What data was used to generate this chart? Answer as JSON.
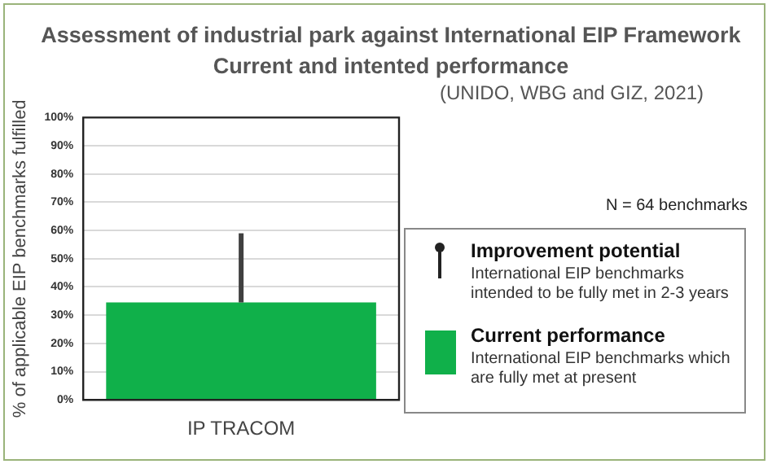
{
  "chart_data": {
    "type": "bar",
    "title": "Assessment of industrial park against International EIP Framework Current and intented performance",
    "subtitle": "(UNIDO, WBG and GIZ, 2021)",
    "ylabel": "% of applicable EIP benchmarks fulfilled",
    "categories": [
      "IP TRACOM"
    ],
    "series": [
      {
        "name": "Current performance",
        "color": "#10b04a",
        "values": [
          34.5
        ],
        "errors": [
          [
            34.5,
            59
          ]
        ]
      }
    ],
    "ylim": [
      0,
      100
    ],
    "yticks": [
      {
        "value": 0,
        "label": "0%"
      },
      {
        "value": 10,
        "label": "10%"
      },
      {
        "value": 20,
        "label": "20%"
      },
      {
        "value": 30,
        "label": "30%"
      },
      {
        "value": 40,
        "label": "40%"
      },
      {
        "value": 50,
        "label": "50%"
      },
      {
        "value": 60,
        "label": "60%"
      },
      {
        "value": 70,
        "label": "70%"
      },
      {
        "value": 80,
        "label": "80%"
      },
      {
        "value": 90,
        "label": "90%"
      },
      {
        "value": 100,
        "label": "100%"
      }
    ],
    "grid": "y",
    "legend": "right",
    "annotations": [
      "N = 64 benchmarks",
      "Improvement potential",
      "International EIP benchmarks intended to be fully met in 2-3 years",
      "International EIP benchmarks which are fully met at present"
    ]
  }
}
